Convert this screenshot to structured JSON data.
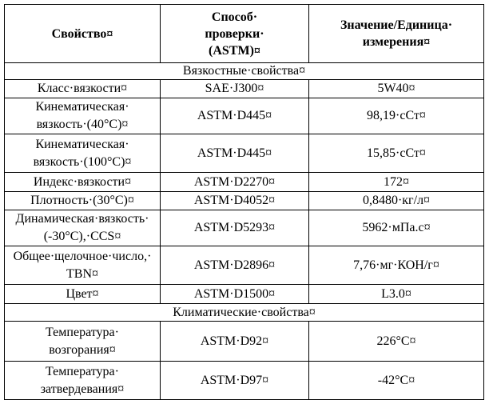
{
  "table": {
    "header": [
      [
        "Свойство¤"
      ],
      [
        "Способ·",
        "проверки·",
        "(ASTM)¤"
      ],
      [
        "Значение/Единица·",
        "измерения¤"
      ]
    ],
    "rows": [
      {
        "section": "Вязкостные·свойства¤"
      },
      {
        "cells": [
          [
            "Класс·вязкости¤"
          ],
          [
            "SAE·J300¤"
          ],
          [
            "5W40¤"
          ]
        ]
      },
      {
        "cells": [
          [
            "Кинематическая·",
            "вязкость·(40°C)¤"
          ],
          [
            "ASTM·D445¤"
          ],
          [
            "98,19·сСт¤"
          ]
        ]
      },
      {
        "cells": [
          [
            "Кинематическая·",
            "вязкость·(100°C)¤"
          ],
          [
            "ASTM·D445¤"
          ],
          [
            "15,85·сСт¤"
          ]
        ]
      },
      {
        "cells": [
          [
            "Индекс·вязкости¤"
          ],
          [
            "ASTM·D2270¤"
          ],
          [
            "172¤"
          ]
        ]
      },
      {
        "cells": [
          [
            "Плотность·(30°C)¤"
          ],
          [
            "ASTM·D4052¤"
          ],
          [
            "0,8480·кг/л¤"
          ]
        ]
      },
      {
        "cells": [
          [
            "Динамическая·вязкость·",
            "(-30°C),·CCS¤"
          ],
          [
            "ASTM·D5293¤"
          ],
          [
            "5962·мПа.с¤"
          ]
        ]
      },
      {
        "cells": [
          [
            "Общее·щелочное·число,·",
            "TBN¤"
          ],
          [
            "ASTM·D2896¤"
          ],
          [
            "7,76·мг·КОН/г¤"
          ]
        ]
      },
      {
        "cells": [
          [
            "Цвет¤"
          ],
          [
            "ASTM·D1500¤"
          ],
          [
            "L3.0¤"
          ]
        ]
      },
      {
        "section": "Климатические·свойства¤"
      },
      {
        "cells": [
          [
            "Температура·",
            "возгорания¤"
          ],
          [
            "ASTM·D92¤"
          ],
          [
            "226°C¤"
          ]
        ]
      },
      {
        "cells": [
          [
            "Температура·",
            "затвердевания¤"
          ],
          [
            "ASTM·D97¤"
          ],
          [
            "-42°C¤"
          ]
        ]
      }
    ]
  }
}
